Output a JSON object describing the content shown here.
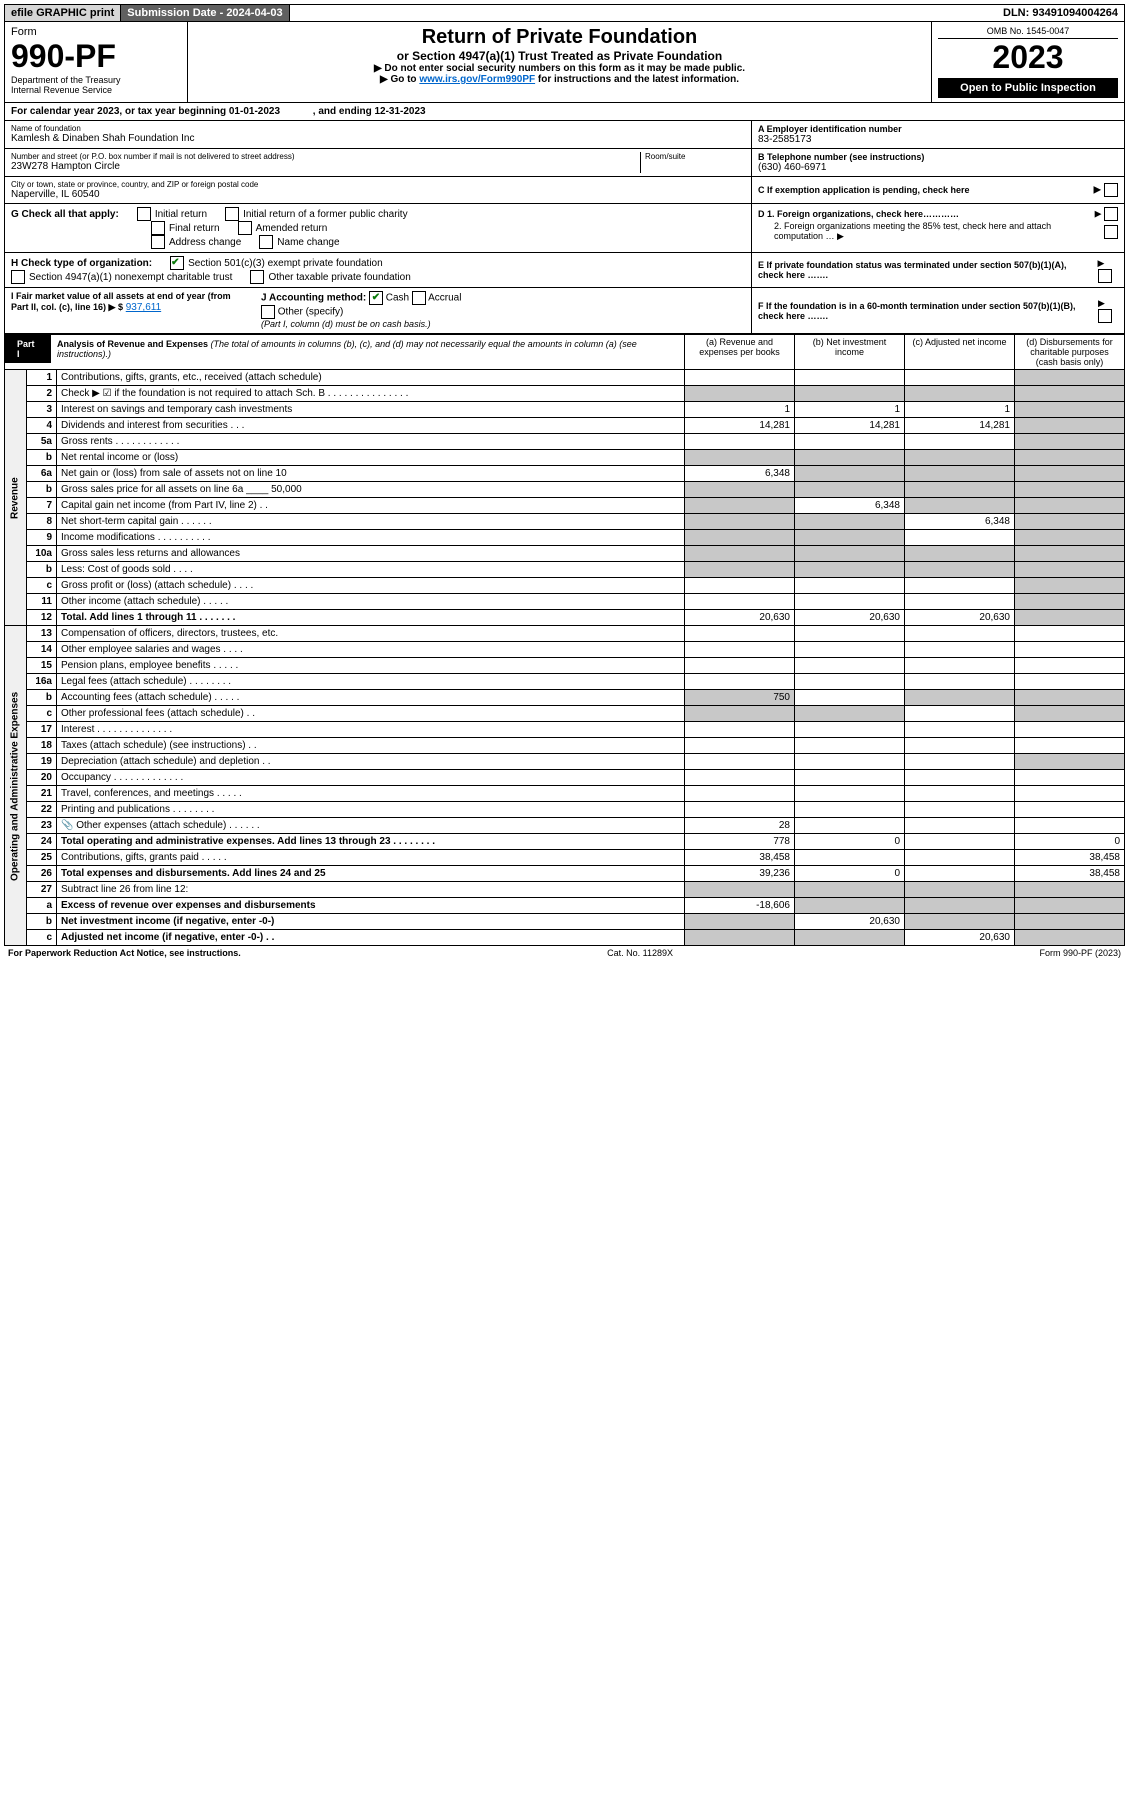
{
  "topbar": {
    "efile": "efile GRAPHIC print",
    "sub": "Submission Date - 2024-04-03",
    "dln": "DLN: 93491094004264"
  },
  "header": {
    "form": "Form",
    "formNo": "990-PF",
    "dept": "Department of the Treasury",
    "irs": "Internal Revenue Service",
    "title": "Return of Private Foundation",
    "sub1": "or Section 4947(a)(1) Trust Treated as Private Foundation",
    "sub2": "▶ Do not enter social security numbers on this form as it may be made public.",
    "sub3": "▶ Go to www.irs.gov/Form990PF for instructions and the latest information.",
    "link": "www.irs.gov/Form990PF",
    "omb": "OMB No. 1545-0047",
    "year": "2023",
    "open": "Open to Public Inspection"
  },
  "calyear": "For calendar year 2023, or tax year beginning 01-01-2023    , and ending 12-31-2023",
  "id": {
    "nameLabel": "Name of foundation",
    "name": "Kamlesh & Dinaben Shah Foundation Inc",
    "einLabel": "A Employer identification number",
    "ein": "83-2585173",
    "addrLabel": "Number and street (or P.O. box number if mail is not delivered to street address)",
    "addr": "23W278 Hampton Circle",
    "roomLabel": "Room/suite",
    "telLabel": "B Telephone number (see instructions)",
    "tel": "(630) 460-6971",
    "cityLabel": "City or town, state or province, country, and ZIP or foreign postal code",
    "city": "Naperville, IL  60540",
    "cLabel": "C If exemption application is pending, check here",
    "d1": "D 1. Foreign organizations, check here…………",
    "d2": "2. Foreign organizations meeting the 85% test, check here and attach computation … ▶",
    "e": "E  If private foundation status was terminated under section 507(b)(1)(A), check here …….",
    "f": "F  If the foundation is in a 60-month termination under section 507(b)(1)(B), check here …….",
    "gLabel": "G Check all that apply:",
    "g": [
      "Initial return",
      "Initial return of a former public charity",
      "Final return",
      "Amended return",
      "Address change",
      "Name change"
    ],
    "hLabel": "H Check type of organization:",
    "h1": "Section 501(c)(3) exempt private foundation",
    "h2": "Section 4947(a)(1) nonexempt charitable trust",
    "h3": "Other taxable private foundation",
    "iLabel": "I Fair market value of all assets at end of year (from Part II, col. (c), line 16) ▶ $",
    "iVal": "937,611",
    "jLabel": "J Accounting method:",
    "j1": "Cash",
    "j2": "Accrual",
    "j3": "Other (specify)",
    "jNote": "(Part I, column (d) must be on cash basis.)"
  },
  "part1": {
    "tag": "Part I",
    "title": "Analysis of Revenue and Expenses",
    "note": "(The total of amounts in columns (b), (c), and (d) may not necessarily equal the amounts in column (a) (see instructions).)",
    "cols": [
      "(a)  Revenue and expenses per books",
      "(b)  Net investment income",
      "(c)  Adjusted net income",
      "(d)  Disbursements for charitable purposes (cash basis only)"
    ],
    "side1": "Revenue",
    "side2": "Operating and Administrative Expenses",
    "lines": [
      {
        "n": "1",
        "d": "Contributions, gifts, grants, etc., received (attach schedule)"
      },
      {
        "n": "2",
        "d": "Check ▶ ☑ if the foundation is not required to attach Sch. B .  .  .  .  .  .  .  .  .  .  .  .  .  .  ."
      },
      {
        "n": "3",
        "d": "Interest on savings and temporary cash investments",
        "a": "1",
        "b": "1",
        "c": "1"
      },
      {
        "n": "4",
        "d": "Dividends and interest from securities  .  .  .",
        "a": "14,281",
        "b": "14,281",
        "c": "14,281"
      },
      {
        "n": "5a",
        "d": "Gross rents  .  .  .  .  .  .  .  .  .  .  .  ."
      },
      {
        "n": "b",
        "d": "Net rental income or (loss)"
      },
      {
        "n": "6a",
        "d": "Net gain or (loss) from sale of assets not on line 10",
        "a": "6,348"
      },
      {
        "n": "b",
        "d": "Gross sales price for all assets on line 6a ____ 50,000"
      },
      {
        "n": "7",
        "d": "Capital gain net income (from Part IV, line 2)  .  .",
        "b": "6,348"
      },
      {
        "n": "8",
        "d": "Net short-term capital gain  .  .  .  .  .  .",
        "c": "6,348"
      },
      {
        "n": "9",
        "d": "Income modifications .  .  .  .  .  .  .  .  .  ."
      },
      {
        "n": "10a",
        "d": "Gross sales less returns and allowances"
      },
      {
        "n": "b",
        "d": "Less: Cost of goods sold  .  .  .  ."
      },
      {
        "n": "c",
        "d": "Gross profit or (loss) (attach schedule)  .  .  .  ."
      },
      {
        "n": "11",
        "d": "Other income (attach schedule)  .  .  .  .  ."
      },
      {
        "n": "12",
        "d": "Total. Add lines 1 through 11  .  .  .  .  .  .  .",
        "bold": true,
        "a": "20,630",
        "b": "20,630",
        "c": "20,630"
      },
      {
        "n": "13",
        "d": "Compensation of officers, directors, trustees, etc."
      },
      {
        "n": "14",
        "d": "Other employee salaries and wages  .  .  .  ."
      },
      {
        "n": "15",
        "d": "Pension plans, employee benefits  .  .  .  .  ."
      },
      {
        "n": "16a",
        "d": "Legal fees (attach schedule) .  .  .  .  .  .  .  ."
      },
      {
        "n": "b",
        "d": "Accounting fees (attach schedule)  .  .  .  .  .",
        "a": "750"
      },
      {
        "n": "c",
        "d": "Other professional fees (attach schedule)  .  ."
      },
      {
        "n": "17",
        "d": "Interest .  .  .  .  .  .  .  .  .  .  .  .  .  ."
      },
      {
        "n": "18",
        "d": "Taxes (attach schedule) (see instructions)  .  ."
      },
      {
        "n": "19",
        "d": "Depreciation (attach schedule) and depletion  .  ."
      },
      {
        "n": "20",
        "d": "Occupancy .  .  .  .  .  .  .  .  .  .  .  .  ."
      },
      {
        "n": "21",
        "d": "Travel, conferences, and meetings .  .  .  .  ."
      },
      {
        "n": "22",
        "d": "Printing and publications .  .  .  .  .  .  .  ."
      },
      {
        "n": "23",
        "d": "Other expenses (attach schedule) .  .  .  .  .  .",
        "icon": "📎",
        "a": "28"
      },
      {
        "n": "24",
        "d": "Total operating and administrative expenses. Add lines 13 through 23 .  .  .  .  .  .  .  .",
        "bold": true,
        "a": "778",
        "b": "0",
        "dd": "0"
      },
      {
        "n": "25",
        "d": "Contributions, gifts, grants paid  .  .  .  .  .",
        "a": "38,458",
        "dd": "38,458"
      },
      {
        "n": "26",
        "d": "Total expenses and disbursements. Add lines 24 and 25",
        "bold": true,
        "a": "39,236",
        "b": "0",
        "dd": "38,458"
      },
      {
        "n": "27",
        "d": "Subtract line 26 from line 12:"
      },
      {
        "n": "a",
        "d": "Excess of revenue over expenses and disbursements",
        "bold": true,
        "a": "-18,606"
      },
      {
        "n": "b",
        "d": "Net investment income (if negative, enter -0-)",
        "bold": true,
        "b": "20,630"
      },
      {
        "n": "c",
        "d": "Adjusted net income (if negative, enter -0-)  .  .",
        "bold": true,
        "c": "20,630"
      }
    ]
  },
  "footer": {
    "l": "For Paperwork Reduction Act Notice, see instructions.",
    "m": "Cat. No. 11289X",
    "r": "Form 990-PF (2023)"
  },
  "shadeMap": {
    "1": [
      "d"
    ],
    "2": [
      "a",
      "b",
      "c",
      "d"
    ],
    "5a": [
      "d"
    ],
    "b": [
      "a",
      "b",
      "c",
      "d"
    ],
    "6a": [
      "b",
      "c",
      "d"
    ],
    "7": [
      "a",
      "c",
      "d"
    ],
    "8": [
      "a",
      "b",
      "d"
    ],
    "9": [
      "a",
      "b",
      "d"
    ],
    "10a": [
      "a",
      "b",
      "c",
      "d"
    ],
    "c": [
      "d"
    ],
    "13": [],
    "19": [
      "d"
    ],
    "27": [
      "a",
      "b",
      "c",
      "d"
    ]
  }
}
